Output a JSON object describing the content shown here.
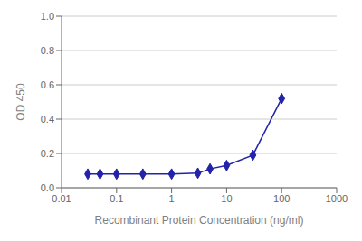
{
  "chart_data": {
    "type": "line",
    "x": [
      0.03,
      0.05,
      0.1,
      0.3,
      1.0,
      3.0,
      5.0,
      10.0,
      30.0,
      100.0
    ],
    "values": [
      0.08,
      0.08,
      0.08,
      0.08,
      0.08,
      0.085,
      0.11,
      0.13,
      0.19,
      0.52
    ],
    "color": "#2222aa",
    "marker": "diamond",
    "xlabel": "Recombinant Protein Concentration (ng/ml)",
    "ylabel": "OD 450",
    "log": "x",
    "xlim": [
      0.01,
      1000
    ],
    "ylim": [
      0.0,
      1.0
    ],
    "xticks": [
      0.01,
      0.1,
      1,
      10,
      100,
      1000
    ],
    "yticks": [
      {
        "value": 0,
        "label": "0.0"
      },
      0.2,
      0.4,
      0.6,
      0.8,
      {
        "value": 1,
        "label": "1.0"
      }
    ],
    "grid": "y"
  }
}
